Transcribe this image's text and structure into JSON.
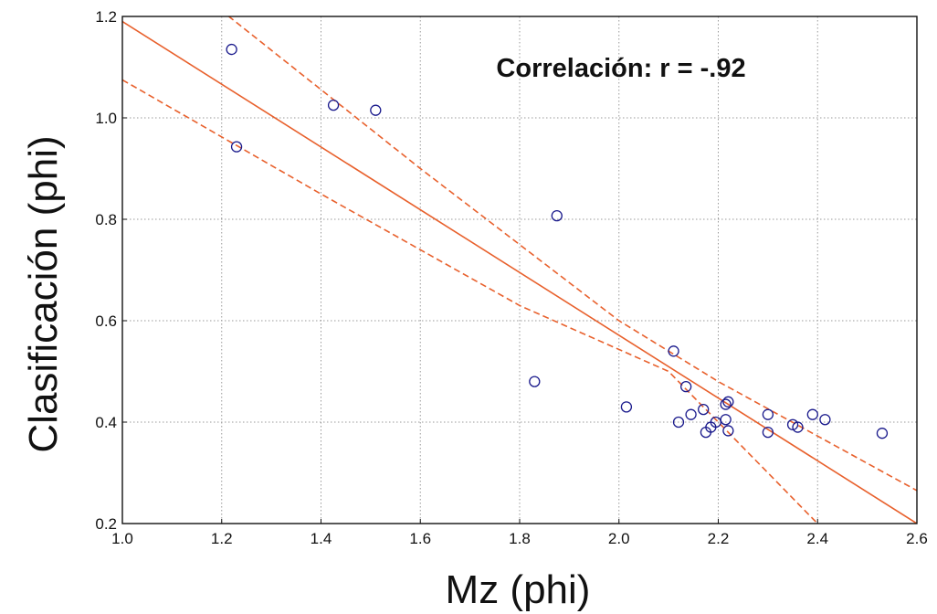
{
  "chart_data": {
    "type": "scatter",
    "xlabel": "Mz (phi)",
    "ylabel": "Clasificación (phi)",
    "annotation": "Correlación: r = -.92",
    "xlim": [
      1.0,
      2.6
    ],
    "ylim": [
      0.2,
      1.2
    ],
    "x_ticks": [
      "1.0",
      "1.2",
      "1.4",
      "1.6",
      "1.8",
      "2.0",
      "2.2",
      "2.4",
      "2.6"
    ],
    "y_ticks": [
      "0.2",
      "0.4",
      "0.6",
      "0.8",
      "1.0",
      "1.2"
    ],
    "grid": true,
    "colors": {
      "points": "#1a1a8c",
      "fit": "#e8602c",
      "grid": "#9a9a9a"
    },
    "points": [
      {
        "x": 1.22,
        "y": 1.135
      },
      {
        "x": 1.23,
        "y": 0.943
      },
      {
        "x": 1.425,
        "y": 1.025
      },
      {
        "x": 1.51,
        "y": 1.015
      },
      {
        "x": 1.83,
        "y": 0.48
      },
      {
        "x": 1.875,
        "y": 0.807
      },
      {
        "x": 2.015,
        "y": 0.43
      },
      {
        "x": 2.11,
        "y": 0.54
      },
      {
        "x": 2.12,
        "y": 0.4
      },
      {
        "x": 2.135,
        "y": 0.47
      },
      {
        "x": 2.145,
        "y": 0.415
      },
      {
        "x": 2.17,
        "y": 0.425
      },
      {
        "x": 2.175,
        "y": 0.38
      },
      {
        "x": 2.185,
        "y": 0.39
      },
      {
        "x": 2.195,
        "y": 0.4
      },
      {
        "x": 2.215,
        "y": 0.405
      },
      {
        "x": 2.215,
        "y": 0.435
      },
      {
        "x": 2.22,
        "y": 0.383
      },
      {
        "x": 2.22,
        "y": 0.44
      },
      {
        "x": 2.3,
        "y": 0.38
      },
      {
        "x": 2.3,
        "y": 0.415
      },
      {
        "x": 2.35,
        "y": 0.395
      },
      {
        "x": 2.36,
        "y": 0.39
      },
      {
        "x": 2.39,
        "y": 0.415
      },
      {
        "x": 2.415,
        "y": 0.405
      },
      {
        "x": 2.53,
        "y": 0.378
      }
    ],
    "regression": {
      "x": [
        1.0,
        2.6
      ],
      "y": [
        1.19,
        0.2
      ]
    },
    "confidence_upper": {
      "x": [
        1.15,
        1.6,
        2.0,
        2.2,
        2.6
      ],
      "y": [
        1.25,
        0.9,
        0.6,
        0.48,
        0.265
      ]
    },
    "confidence_lower": {
      "x": [
        1.0,
        1.4,
        1.8,
        2.1,
        2.4
      ],
      "y": [
        1.075,
        0.85,
        0.63,
        0.5,
        0.2
      ]
    }
  }
}
